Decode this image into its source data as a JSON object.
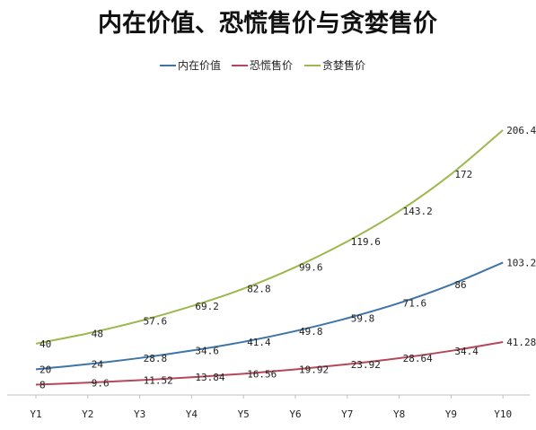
{
  "chart_data": {
    "type": "line",
    "title": "内在价值、恐慌售价与贪婪售价",
    "categories": [
      "Y1",
      "Y2",
      "Y3",
      "Y4",
      "Y5",
      "Y6",
      "Y7",
      "Y8",
      "Y9",
      "Y10"
    ],
    "series": [
      {
        "name": "内在价值",
        "color": "#3f74a8",
        "values": [
          20,
          24,
          28.8,
          34.6,
          41.4,
          49.8,
          59.8,
          71.6,
          86,
          103.2
        ],
        "labels": [
          "20",
          "24",
          "28.8",
          "34.6",
          "41.4",
          "49.8",
          "59.8",
          "71.6",
          "86",
          "103.2"
        ]
      },
      {
        "name": "恐慌售价",
        "color": "#b4485a",
        "values": [
          8,
          9.6,
          11.52,
          13.84,
          16.56,
          19.92,
          23.92,
          28.64,
          34.4,
          41.28
        ],
        "labels": [
          "8",
          "9.6",
          "11.52",
          "13.84",
          "16.56",
          "19.92",
          "23.92",
          "28.64",
          "34.4",
          "41.28"
        ]
      },
      {
        "name": "贪婪售价",
        "color": "#9cb84e",
        "values": [
          40,
          48,
          57.6,
          69.2,
          82.8,
          99.6,
          119.6,
          143.2,
          172,
          206.4
        ],
        "labels": [
          "40",
          "48",
          "57.6",
          "69.2",
          "82.8",
          "99.6",
          "119.6",
          "143.2",
          "172",
          "206.4"
        ]
      }
    ],
    "legend": "top-center",
    "grid": false
  }
}
